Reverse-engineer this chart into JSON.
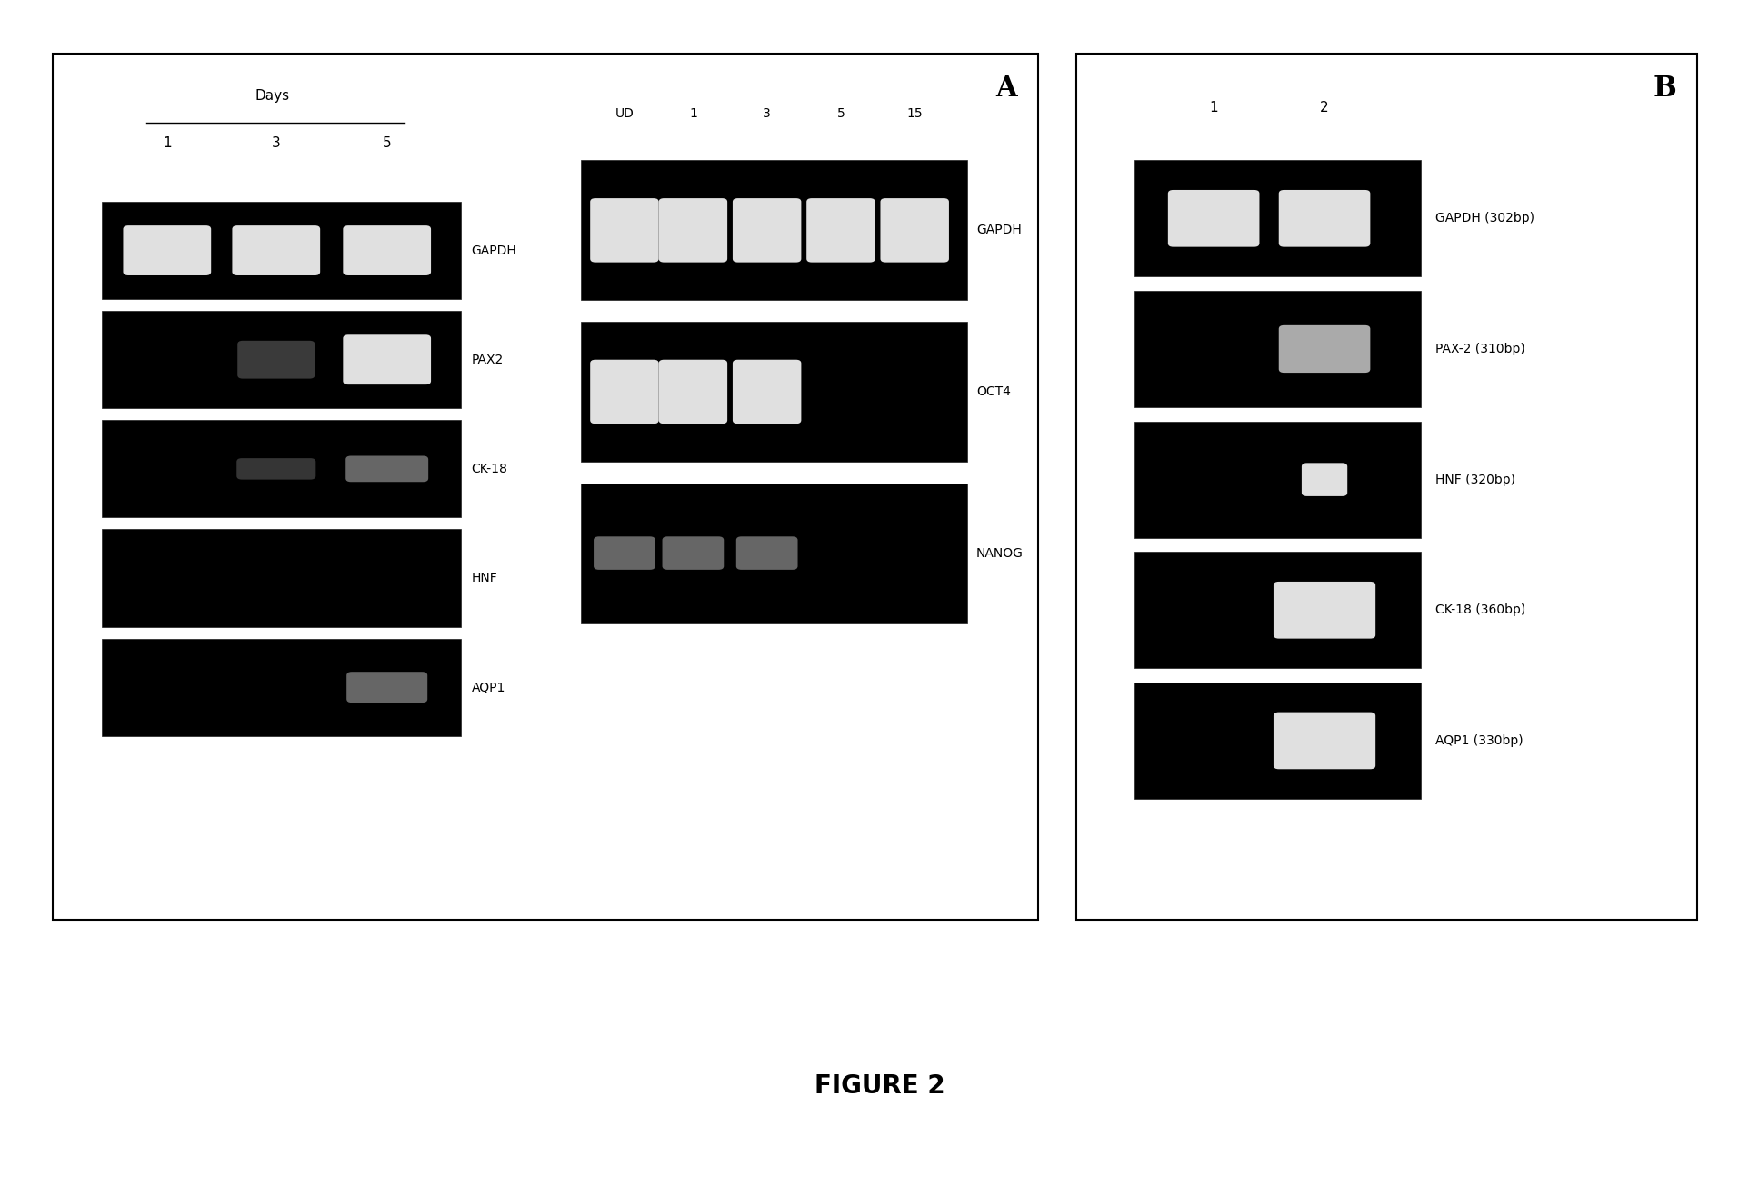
{
  "fig_width": 19.35,
  "fig_height": 13.06,
  "bg_color": "#ffffff",
  "gel_bg": "#000000",
  "band_bright": "#e0e0e0",
  "band_medium": "#aaaaaa",
  "band_dim": "#666666",
  "band_faint": "#3a3a3a",
  "figure_label": "FIGURE 2",
  "panel_A_label": "A",
  "panel_B_label": "B",
  "panel_A_days_label": "Days",
  "panel_A_left_lanes": [
    "1",
    "3",
    "5"
  ],
  "panel_A_right_lanes": [
    "UD",
    "1",
    "3",
    "5",
    "15"
  ],
  "panel_A_left_genes": [
    "GAPDH",
    "PAX2",
    "CK-18",
    "HNF",
    "AQP1"
  ],
  "panel_A_right_genes": [
    "GAPDH",
    "OCT4",
    "NANOG"
  ],
  "panel_B_lanes": [
    "1",
    "2"
  ],
  "panel_B_genes": [
    "GAPDH (302bp)",
    "PAX-2 (310bp)",
    "HNF (320bp)",
    "CK-18 (360bp)",
    "AQP1 (330bp)"
  ]
}
